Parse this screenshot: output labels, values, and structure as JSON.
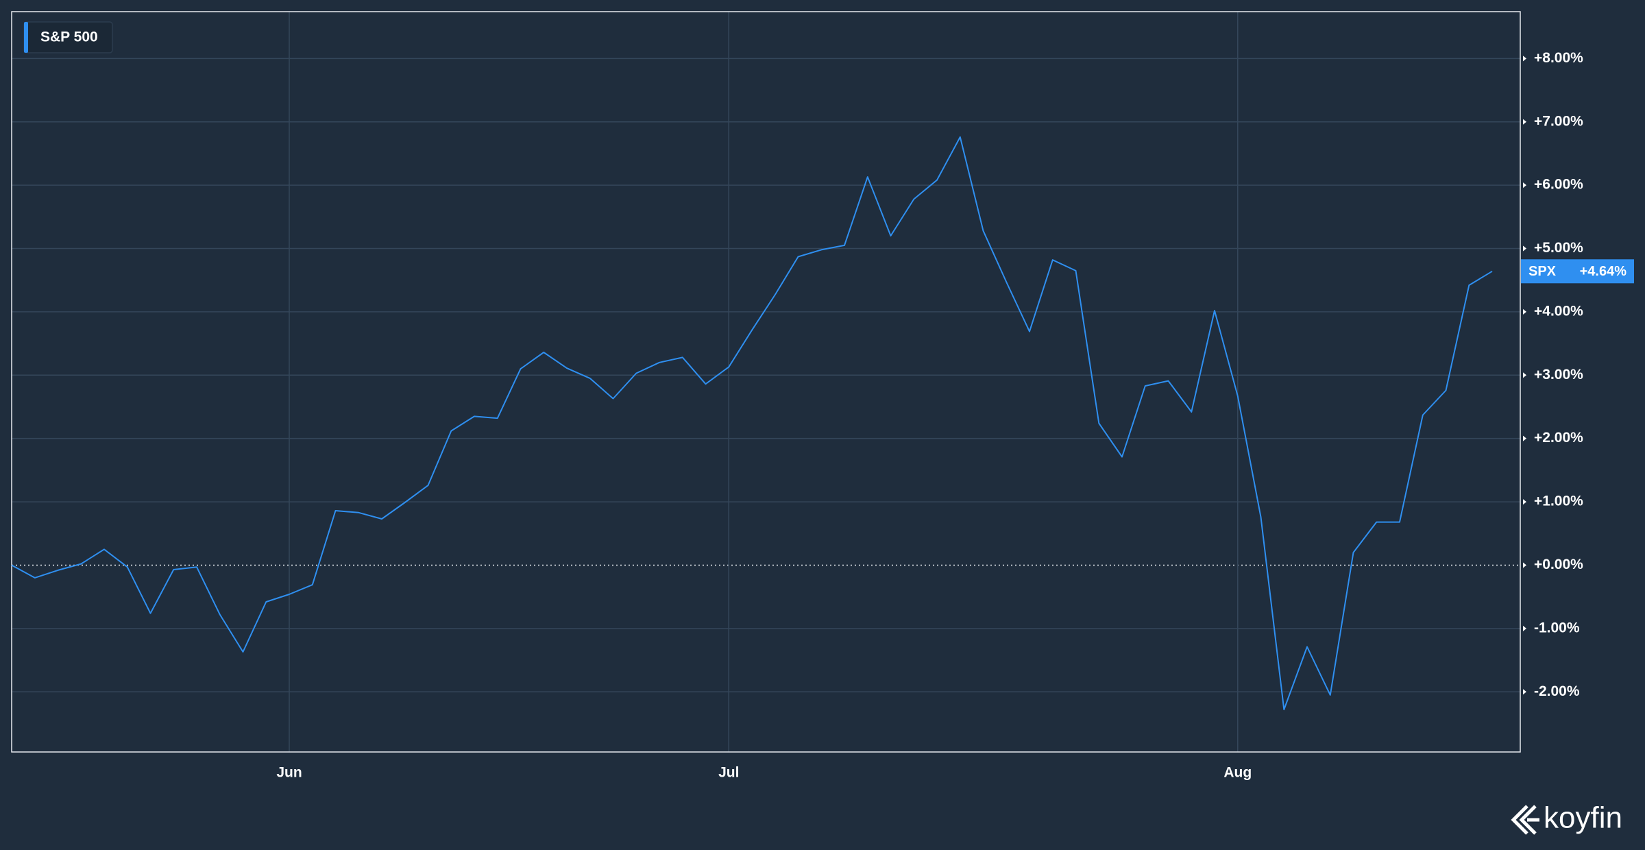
{
  "chart_data": {
    "type": "line",
    "categories": [
      null,
      null,
      null,
      null,
      null,
      null,
      null,
      null,
      null,
      null,
      null,
      null,
      "Jun",
      null,
      null,
      null,
      null,
      null,
      null,
      null,
      null,
      null,
      null,
      null,
      null,
      null,
      null,
      null,
      null,
      null,
      null,
      "Jul",
      null,
      null,
      null,
      null,
      null,
      null,
      null,
      null,
      null,
      null,
      null,
      null,
      null,
      null,
      null,
      null,
      null,
      null,
      null,
      null,
      null,
      "Aug",
      null,
      null,
      null,
      null,
      null,
      null,
      null,
      null,
      null,
      null,
      null
    ],
    "series": [
      {
        "name": "S&P 500",
        "ticker": "SPX",
        "color": "#2f8ff0",
        "values": [
          0.0,
          -0.2,
          -0.08,
          0.02,
          0.25,
          -0.03,
          -0.76,
          -0.07,
          -0.03,
          -0.78,
          -1.37,
          -0.58,
          -0.46,
          -0.31,
          0.86,
          0.83,
          0.73,
          0.99,
          1.26,
          2.12,
          2.35,
          2.32,
          3.1,
          3.36,
          3.11,
          2.95,
          2.63,
          3.03,
          3.2,
          3.28,
          2.86,
          3.13,
          3.71,
          4.27,
          4.87,
          4.98,
          5.05,
          6.13,
          5.2,
          5.78,
          6.08,
          6.76,
          5.28,
          4.47,
          3.69,
          4.82,
          4.65,
          2.24,
          1.71,
          2.83,
          2.91,
          2.42,
          4.02,
          2.67,
          0.76,
          -2.28,
          -1.29,
          -2.05,
          0.2,
          0.68,
          0.68,
          2.37,
          2.76,
          4.42,
          4.64
        ],
        "last_value_label": "+4.64%"
      }
    ],
    "ylim": [
      -2.95,
      8.74
    ],
    "yticks": [
      {
        "value": -2,
        "label": "-2.00%"
      },
      {
        "value": -1,
        "label": "-1.00%"
      },
      {
        "value": 0,
        "label": "+0.00%"
      },
      {
        "value": 1,
        "label": "+1.00%"
      },
      {
        "value": 2,
        "label": "+2.00%"
      },
      {
        "value": 3,
        "label": "+3.00%"
      },
      {
        "value": 4,
        "label": "+4.00%"
      },
      {
        "value": 5,
        "label": "+5.00%"
      },
      {
        "value": 6,
        "label": "+6.00%"
      },
      {
        "value": 7,
        "label": "+7.00%"
      },
      {
        "value": 8,
        "label": "+8.00%"
      }
    ],
    "grid": true,
    "legend": "upper left",
    "brand": "koyfin"
  }
}
